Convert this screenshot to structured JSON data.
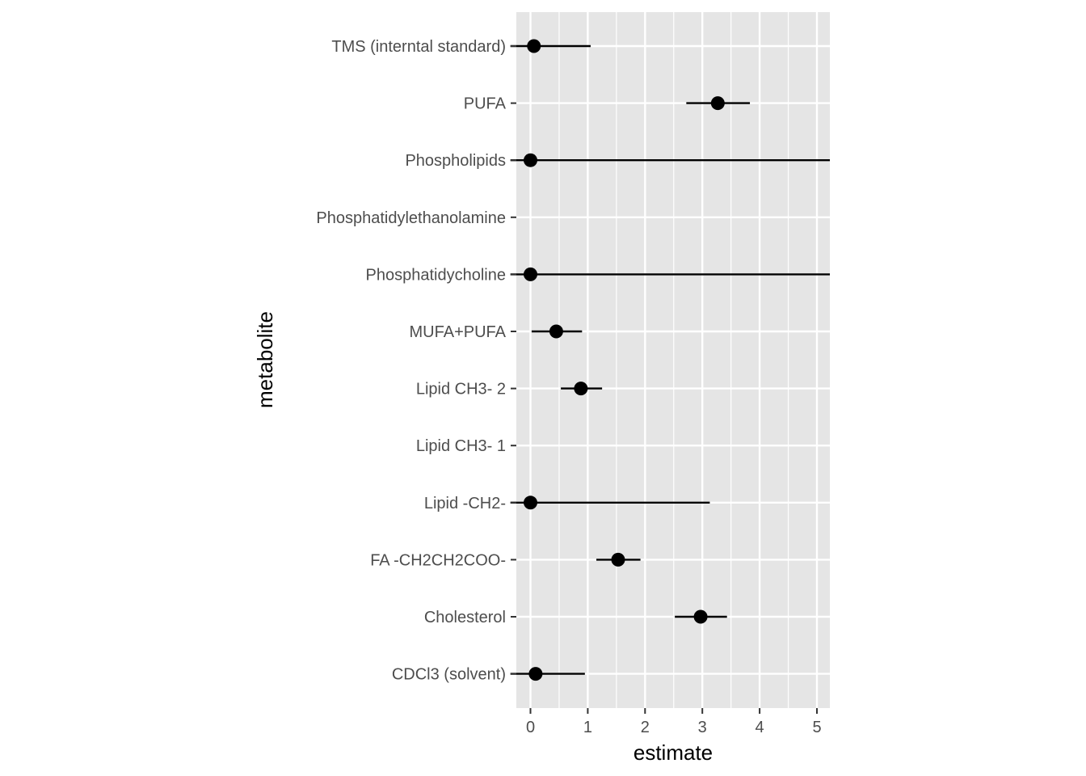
{
  "chart_data": {
    "type": "scatter",
    "subtype": "point-range",
    "xlabel": "estimate",
    "ylabel": "metabolite",
    "xlim": [
      -0.25,
      5.25
    ],
    "x_ticks": [
      0,
      1,
      2,
      3,
      4,
      5
    ],
    "x_tick_labels": [
      "0",
      "1",
      "2",
      "3",
      "4",
      "5"
    ],
    "grid": true,
    "legend": "none",
    "categories": [
      "TMS (interntal standard)",
      "PUFA",
      "Phospholipids",
      "Phosphatidylethanolamine",
      "Phosphatidycholine",
      "MUFA+PUFA",
      "Lipid CH3- 2",
      "Lipid CH3- 1",
      "Lipid -CH2-",
      "FA -CH2CH2COO-",
      "Cholesterol",
      "CDCl3 (solvent)"
    ],
    "points": [
      {
        "metabolite": "TMS (interntal standard)",
        "estimate": 0.06,
        "low": -0.35,
        "high": 1.05
      },
      {
        "metabolite": "PUFA",
        "estimate": 3.27,
        "low": 2.72,
        "high": 3.83
      },
      {
        "metabolite": "Phospholipids",
        "estimate": 0.0,
        "low": -0.35,
        "high": 5.25
      },
      {
        "metabolite": "Phosphatidylethanolamine",
        "estimate": null,
        "low": null,
        "high": null
      },
      {
        "metabolite": "Phosphatidycholine",
        "estimate": 0.0,
        "low": -0.35,
        "high": 5.25
      },
      {
        "metabolite": "MUFA+PUFA",
        "estimate": 0.45,
        "low": 0.02,
        "high": 0.9
      },
      {
        "metabolite": "Lipid CH3- 2",
        "estimate": 0.88,
        "low": 0.53,
        "high": 1.25
      },
      {
        "metabolite": "Lipid CH3- 1",
        "estimate": null,
        "low": null,
        "high": null
      },
      {
        "metabolite": "Lipid -CH2-",
        "estimate": 0.0,
        "low": -0.35,
        "high": 3.13
      },
      {
        "metabolite": "FA -CH2CH2COO-",
        "estimate": 1.53,
        "low": 1.15,
        "high": 1.92
      },
      {
        "metabolite": "Cholesterol",
        "estimate": 2.97,
        "low": 2.52,
        "high": 3.43
      },
      {
        "metabolite": "CDCl3 (solvent)",
        "estimate": 0.09,
        "low": -0.35,
        "high": 0.95
      }
    ],
    "colors": {
      "panel_background": "#e5e5e5",
      "grid_line": "#ffffff",
      "point": "#000000",
      "tick_label": "#4d4d4d",
      "axis_title": "#000000"
    }
  }
}
